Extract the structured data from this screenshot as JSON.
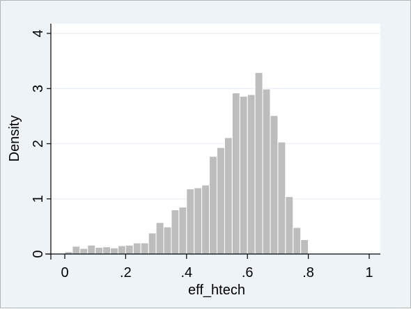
{
  "chart_data": {
    "type": "histogram",
    "title": "",
    "xlabel": "eff_htech",
    "ylabel": "Density",
    "xlim": [
      -0.05,
      1.02
    ],
    "ylim": [
      0,
      4.2
    ],
    "xticks": [
      0,
      0.2,
      0.4,
      0.6,
      0.8,
      1
    ],
    "xtick_labels": [
      "0",
      ".2",
      ".4",
      ".6",
      ".8",
      "1"
    ],
    "yticks": [
      0,
      1,
      2,
      3,
      4
    ],
    "ytick_labels": [
      "0",
      "1",
      "2",
      "3",
      "4"
    ],
    "grid": true,
    "bar_color": "#bdbdbd",
    "bin_start": 0,
    "bin_width": 0.025,
    "values": [
      0.04,
      0.14,
      0.1,
      0.16,
      0.12,
      0.13,
      0.11,
      0.15,
      0.16,
      0.2,
      0.2,
      0.38,
      0.57,
      0.49,
      0.8,
      0.85,
      1.18,
      1.2,
      1.25,
      1.77,
      1.93,
      2.11,
      2.92,
      2.86,
      2.89,
      3.29,
      2.99,
      2.51,
      2.03,
      1.04,
      0.48,
      0.26,
      0.01,
      0,
      0,
      0.01
    ]
  }
}
